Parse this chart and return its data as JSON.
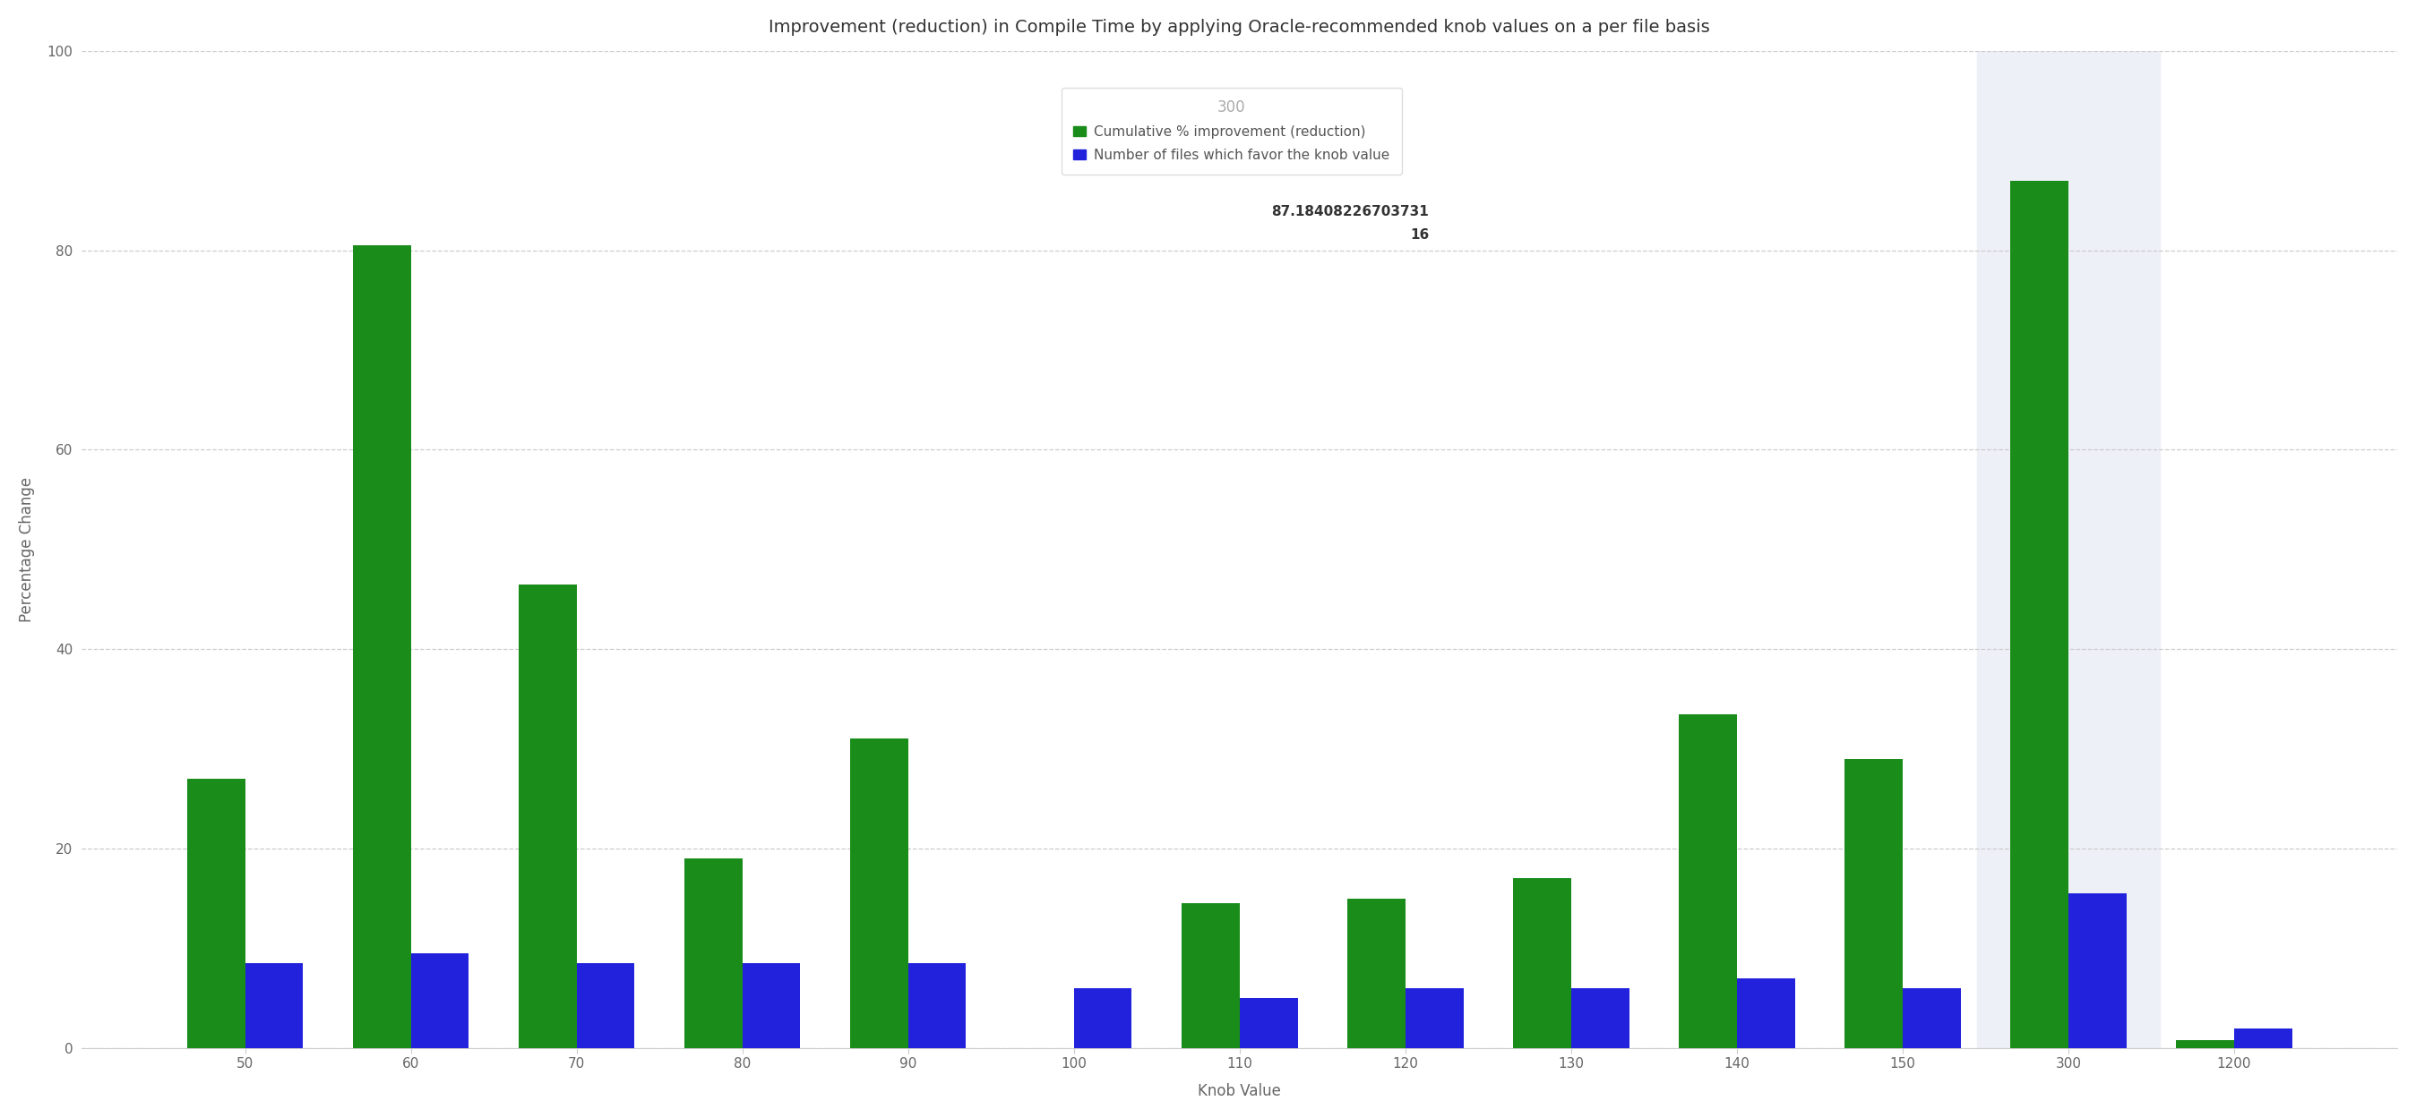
{
  "title": "Improvement (reduction) in Compile Time by applying Oracle-recommended knob values on a per file basis",
  "xlabel": "Knob Value",
  "ylabel": "Percentage Change",
  "categories": [
    "50",
    "60",
    "70",
    "80",
    "90",
    "100",
    "110",
    "120",
    "130",
    "140",
    "150",
    "300",
    "1200"
  ],
  "green_values": [
    27.0,
    80.5,
    46.5,
    19.0,
    31.0,
    0.0,
    14.5,
    15.0,
    17.0,
    33.5,
    29.0,
    87.0,
    0.8
  ],
  "blue_values": [
    8.5,
    9.5,
    8.5,
    8.5,
    8.5,
    6.0,
    5.0,
    6.0,
    6.0,
    7.0,
    6.0,
    15.5,
    2.0
  ],
  "green_color": "#1a8c1a",
  "blue_color": "#2222dd",
  "highlighted_index": 11,
  "highlight_bg": "#eef0f8",
  "ylim": [
    0,
    100
  ],
  "yticks": [
    0,
    20,
    40,
    60,
    80,
    100
  ],
  "legend_title": "300",
  "legend_green_label": "Cumulative % improvement (reduction)",
  "legend_green_value": "87.18408226703731",
  "legend_blue_label": "Number of files which favor the knob value",
  "legend_blue_value": "16",
  "bar_width": 0.35,
  "title_fontsize": 14,
  "axis_label_fontsize": 12,
  "tick_fontsize": 11,
  "grid_color": "#cccccc",
  "grid_linestyle": "--",
  "background_color": "#ffffff"
}
